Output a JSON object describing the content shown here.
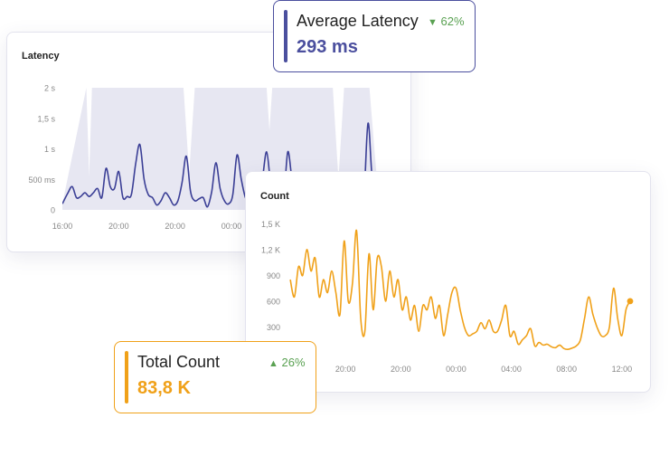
{
  "latency_card": {
    "title": "Latency"
  },
  "count_card": {
    "title": "Count"
  },
  "avg_latency": {
    "label": "Average Latency",
    "value": "293 ms",
    "delta_arrow": "▼",
    "delta": "62%",
    "delta_color": "#5aa152",
    "accent": "#4b4f9e"
  },
  "total_count": {
    "label": "Total Count",
    "value": "83,8 K",
    "delta_arrow": "▲",
    "delta": "26%",
    "delta_color": "#5aa152",
    "accent": "#f0a119"
  },
  "chart_data": [
    {
      "type": "line",
      "title": "Latency",
      "y_ticks": [
        {
          "v": 0,
          "label": "0"
        },
        {
          "v": 0.5,
          "label": "500 ms"
        },
        {
          "v": 1,
          "label": "1 s"
        },
        {
          "v": 1.5,
          "label": "1,5 s"
        },
        {
          "v": 2,
          "label": "2 s"
        }
      ],
      "x_ticks": [
        {
          "x": 0,
          "label": "16:00"
        },
        {
          "x": 4,
          "label": "20:00"
        },
        {
          "x": 8,
          "label": "20:00"
        },
        {
          "x": 12,
          "label": "00:00"
        }
      ],
      "ylim": [
        0,
        2
      ],
      "xlim": [
        0,
        22.4
      ],
      "color": "#3b3f96",
      "band_color": "#e7e7f2",
      "series": [
        {
          "x": [
            0,
            0.4,
            0.7,
            1.0,
            1.3,
            1.6,
            1.9,
            2.2,
            2.5,
            2.8,
            3.1,
            3.4,
            3.7,
            4.0,
            4.3,
            4.6,
            4.9,
            5.2,
            5.5,
            5.8,
            6.1,
            6.4,
            6.7,
            7.0,
            7.3,
            7.6,
            7.9,
            8.2,
            8.5,
            8.8,
            9.1,
            9.4,
            9.7,
            10.0,
            10.3,
            10.6,
            10.9,
            11.2,
            11.5,
            11.8,
            12.1,
            12.4,
            12.7,
            13.0,
            13.3,
            13.6,
            13.9,
            14.2,
            14.5,
            14.8,
            15.1,
            15.4,
            15.7,
            16.0,
            16.3,
            16.6,
            16.9,
            17.2,
            17.5,
            17.8,
            18.1,
            18.4,
            18.7,
            19.0,
            19.3,
            19.6,
            19.9,
            20.2,
            20.5,
            20.8,
            21.1,
            21.4,
            21.7,
            22.0,
            22.4
          ],
          "y": [
            0.1,
            0.28,
            0.38,
            0.2,
            0.22,
            0.28,
            0.22,
            0.28,
            0.35,
            0.2,
            0.68,
            0.38,
            0.35,
            0.63,
            0.2,
            0.22,
            0.25,
            0.75,
            1.07,
            0.5,
            0.25,
            0.2,
            0.08,
            0.15,
            0.28,
            0.2,
            0.08,
            0.15,
            0.45,
            0.88,
            0.3,
            0.15,
            0.18,
            0.2,
            0.05,
            0.3,
            0.77,
            0.35,
            0.15,
            0.1,
            0.25,
            0.9,
            0.5,
            0.2,
            0.12,
            0.1,
            0.15,
            0.5,
            0.95,
            0.4,
            0.1,
            0.08,
            0.12,
            0.95,
            0.5,
            0.2,
            0.25,
            0.3,
            0.22,
            0.2,
            0.22,
            0.25,
            0.3,
            0.28,
            0.3,
            0.2,
            0.25,
            0.3,
            0.35,
            0.3,
            0.4,
            0.2,
            1.42,
            0.5,
            0.2
          ]
        }
      ],
      "band": [
        [
          0,
          0.1
        ],
        [
          1.7,
          2
        ],
        [
          1.9,
          0.55
        ],
        [
          2.1,
          2
        ],
        [
          8.6,
          2
        ],
        [
          9.0,
          0.6
        ],
        [
          9.4,
          2
        ],
        [
          14.5,
          2
        ],
        [
          14.7,
          1.3
        ],
        [
          14.9,
          2
        ],
        [
          19.2,
          2
        ],
        [
          19.6,
          0.5
        ],
        [
          20.0,
          2
        ],
        [
          21.8,
          2
        ],
        [
          22.4,
          0.3
        ]
      ]
    },
    {
      "type": "line",
      "title": "Count",
      "y_ticks": [
        {
          "v": 300,
          "label": "300"
        },
        {
          "v": 600,
          "label": "600"
        },
        {
          "v": 900,
          "label": "900"
        },
        {
          "v": 1200,
          "label": "1,2 K"
        },
        {
          "v": 1500,
          "label": "1,5 K"
        }
      ],
      "x_ticks": [
        {
          "x": 4,
          "label": "20:00"
        },
        {
          "x": 8,
          "label": "20:00"
        },
        {
          "x": 12,
          "label": "00:00"
        },
        {
          "x": 16,
          "label": "04:00"
        },
        {
          "x": 20,
          "label": "08:00"
        },
        {
          "x": 24,
          "label": "12:00"
        }
      ],
      "ylim": [
        0,
        1650
      ],
      "xlim": [
        -0.2,
        24.6
      ],
      "color": "#f0a119",
      "series": [
        {
          "x": [
            0,
            0.3,
            0.6,
            0.9,
            1.2,
            1.5,
            1.8,
            2.1,
            2.4,
            2.7,
            3.0,
            3.3,
            3.6,
            3.9,
            4.2,
            4.5,
            4.8,
            5.1,
            5.4,
            5.7,
            6.0,
            6.3,
            6.6,
            6.9,
            7.2,
            7.5,
            7.8,
            8.1,
            8.4,
            8.7,
            9.0,
            9.3,
            9.6,
            9.9,
            10.2,
            10.5,
            10.8,
            11.1,
            11.4,
            11.7,
            12.0,
            12.3,
            12.6,
            12.9,
            13.2,
            13.5,
            13.8,
            14.1,
            14.4,
            14.7,
            15.0,
            15.3,
            15.6,
            15.9,
            16.2,
            16.5,
            16.8,
            17.1,
            17.4,
            17.7,
            18.0,
            18.3,
            18.6,
            18.9,
            19.2,
            19.5,
            19.8,
            20.1,
            20.4,
            20.7,
            21.0,
            21.3,
            21.6,
            21.9,
            22.2,
            22.5,
            22.8,
            23.1,
            23.4,
            23.7,
            24.0,
            24.3,
            24.6
          ],
          "y": [
            850,
            650,
            1000,
            900,
            1200,
            950,
            1100,
            650,
            850,
            700,
            950,
            700,
            450,
            1300,
            600,
            800,
            1420,
            400,
            250,
            1150,
            500,
            1100,
            1000,
            600,
            950,
            650,
            850,
            500,
            650,
            380,
            550,
            250,
            550,
            500,
            650,
            400,
            550,
            200,
            450,
            700,
            750,
            500,
            300,
            200,
            220,
            250,
            350,
            280,
            380,
            250,
            250,
            380,
            550,
            200,
            250,
            100,
            150,
            200,
            280,
            80,
            120,
            90,
            100,
            70,
            60,
            90,
            50,
            40,
            55,
            80,
            150,
            400,
            650,
            450,
            300,
            200,
            200,
            300,
            750,
            400,
            200,
            500,
            600
          ]
        }
      ],
      "last_point_marker": true
    }
  ]
}
